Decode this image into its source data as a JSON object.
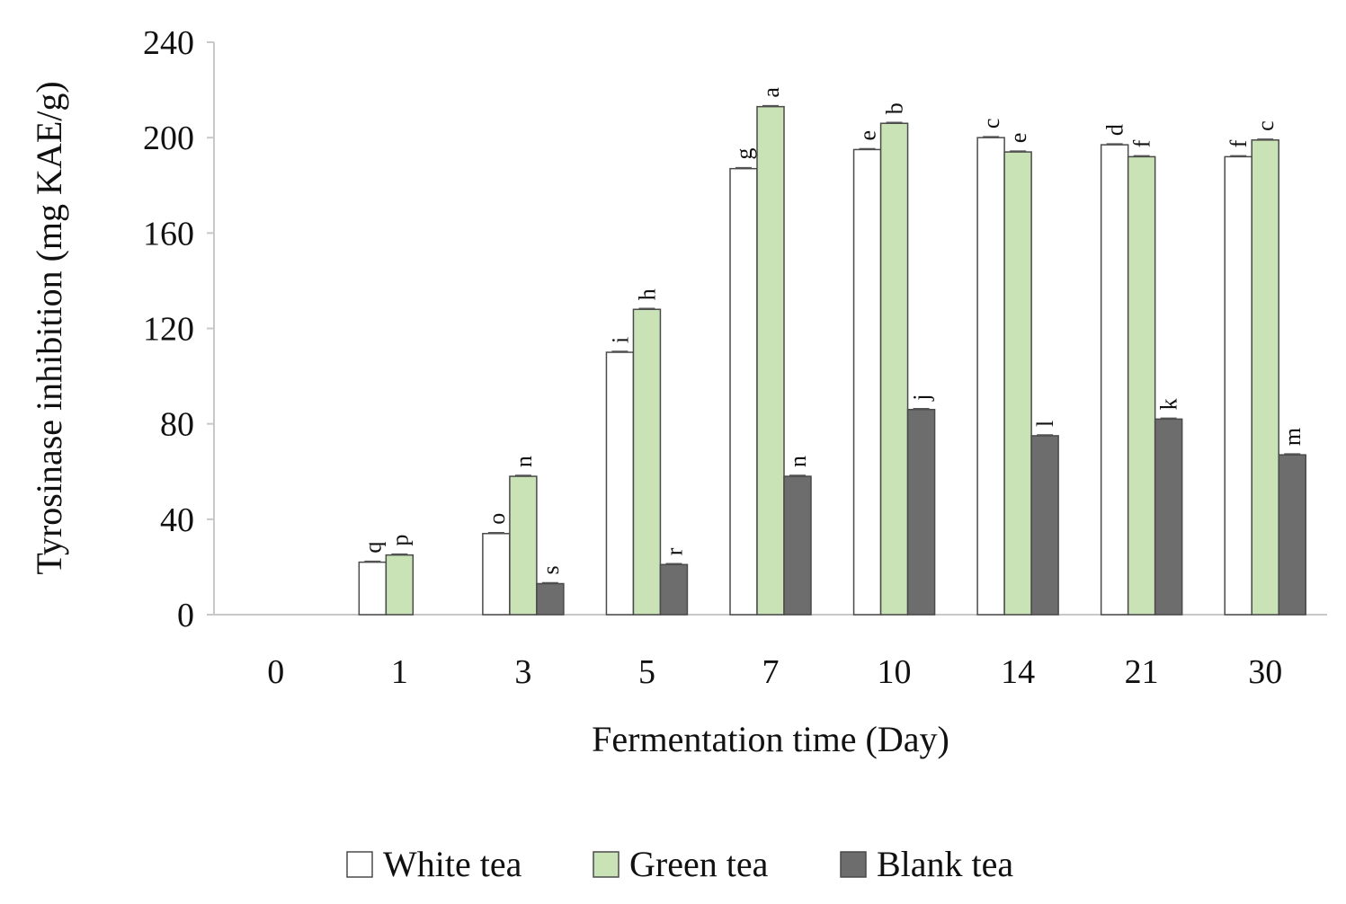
{
  "chart_data": {
    "type": "bar",
    "title": "",
    "xlabel": "Fermentation time (Day)",
    "ylabel": "Tyrosinase inhibition (mg KAE/g)",
    "ylim": [
      0,
      240
    ],
    "yticks": [
      0,
      40,
      80,
      120,
      160,
      200,
      240
    ],
    "grid": false,
    "legend_position": "bottom",
    "categories": [
      "0",
      "1",
      "3",
      "5",
      "7",
      "10",
      "14",
      "21",
      "30"
    ],
    "series": [
      {
        "name": "White tea",
        "color": "#ffffff",
        "values": [
          0,
          22,
          34,
          110,
          187,
          195,
          200,
          197,
          192
        ],
        "letters": [
          "",
          "q",
          "o",
          "i",
          "g",
          "e",
          "c",
          "d",
          "f"
        ]
      },
      {
        "name": "Green tea",
        "color": "#c9e3b7",
        "values": [
          0,
          25,
          58,
          128,
          213,
          206,
          194,
          192,
          199
        ],
        "letters": [
          "",
          "p",
          "n",
          "h",
          "a",
          "b",
          "e",
          "f",
          "c"
        ]
      },
      {
        "name": "Blank tea",
        "color": "#6d6d6d",
        "values": [
          0,
          0,
          13,
          21,
          58,
          86,
          75,
          82,
          67
        ],
        "letters": [
          "",
          "",
          "s",
          "r",
          "n",
          "j",
          "l",
          "k",
          "m"
        ]
      }
    ]
  }
}
